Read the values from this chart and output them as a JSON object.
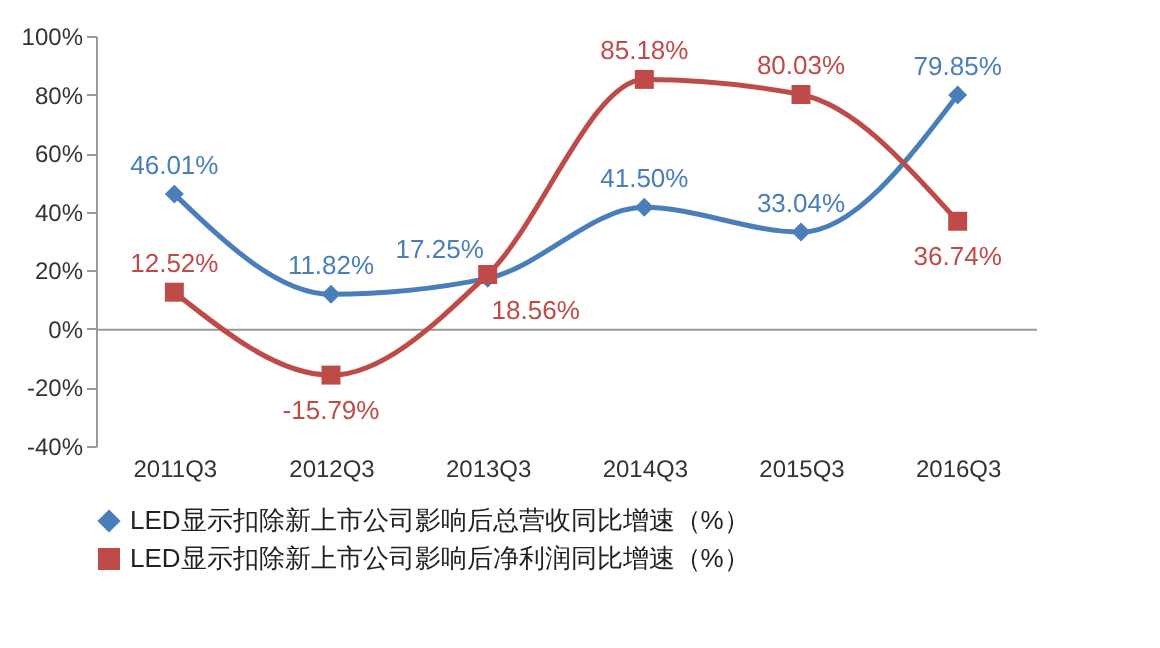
{
  "chart_data": {
    "type": "line",
    "categories": [
      "2011Q3",
      "2012Q3",
      "2013Q3",
      "2014Q3",
      "2015Q3",
      "2016Q3"
    ],
    "series": [
      {
        "name": "LED显示扣除新上市公司影响后总营收同比增速（%）",
        "color": "#4a7ebb",
        "marker": "diamond",
        "values": [
          46.01,
          11.82,
          17.25,
          41.5,
          33.04,
          79.85
        ],
        "value_labels": [
          "46.01%",
          "11.82%",
          "17.25%",
          "41.50%",
          "33.04%",
          "79.85%"
        ]
      },
      {
        "name": "LED显示扣除新上市公司影响后净利润同比增速（%）",
        "color": "#be4b48",
        "marker": "square",
        "values": [
          12.52,
          -15.79,
          18.56,
          85.18,
          80.03,
          36.74
        ],
        "value_labels": [
          "12.52%",
          "-15.79%",
          "18.56%",
          "85.18%",
          "80.03%",
          "36.74%"
        ]
      }
    ],
    "ylim": [
      -40,
      100
    ],
    "yticks": [
      {
        "value": -40,
        "label": "-40%"
      },
      {
        "value": -20,
        "label": "-20%"
      },
      {
        "value": 0,
        "label": "0%"
      },
      {
        "value": 20,
        "label": "20%"
      },
      {
        "value": 40,
        "label": "40%"
      },
      {
        "value": 60,
        "label": "60%"
      },
      {
        "value": 80,
        "label": "80%"
      },
      {
        "value": 100,
        "label": "100%"
      }
    ],
    "legend": "bottom"
  }
}
